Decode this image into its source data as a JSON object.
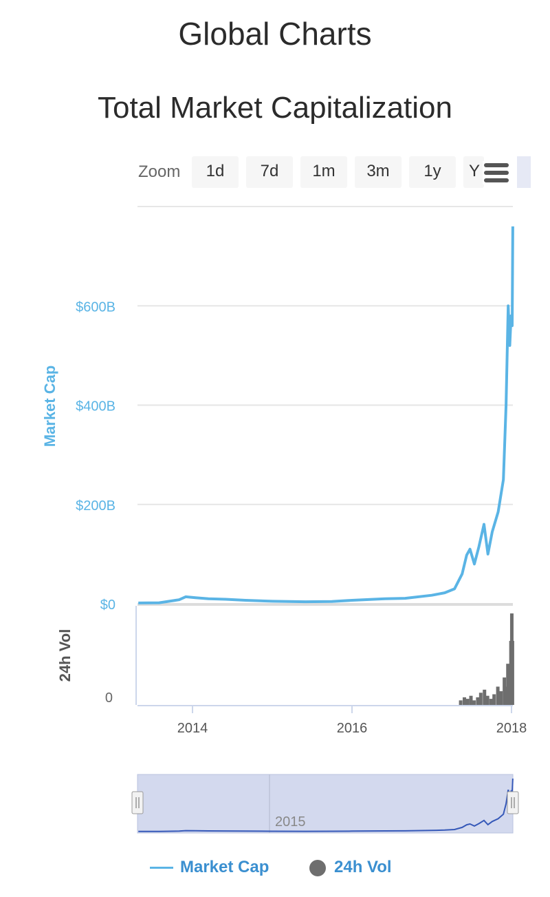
{
  "page_title": "Global Charts",
  "chart_title": "Total Market Capitalization",
  "toolbar": {
    "zoom_label": "Zoom",
    "buttons": [
      "1d",
      "7d",
      "1m",
      "3m",
      "1y",
      "Y"
    ],
    "menu_icon": "hamburger-menu-icon"
  },
  "colors": {
    "market_cap": "#5ab4e5",
    "volume": "#6e6e6e",
    "navigator_fill": "#d3d9ee",
    "navigator_line": "#3558b8"
  },
  "chart_data": {
    "type": "line",
    "title": "Total Market Capitalization",
    "ylabel": "Market Cap",
    "ylim": [
      0,
      800
    ],
    "y_ticks": [
      "$0",
      "$200B",
      "$400B",
      "$600B"
    ],
    "y_tick_values": [
      0,
      200,
      400,
      600
    ],
    "x_ticks": [
      "2014",
      "2016",
      "2018"
    ],
    "grid": true,
    "series": [
      {
        "name": "Market Cap",
        "type": "line",
        "unit": "$B",
        "x": [
          "2013-04-28",
          "2013-08-01",
          "2013-11-01",
          "2013-12-01",
          "2014-01-15",
          "2014-03-15",
          "2014-06-01",
          "2014-09-01",
          "2015-01-01",
          "2015-06-01",
          "2015-10-01",
          "2016-01-01",
          "2016-06-01",
          "2016-09-01",
          "2017-01-01",
          "2017-03-01",
          "2017-04-15",
          "2017-05-20",
          "2017-06-10",
          "2017-06-25",
          "2017-07-15",
          "2017-08-05",
          "2017-08-28",
          "2017-09-15",
          "2017-10-05",
          "2017-11-01",
          "2017-11-25",
          "2017-12-07",
          "2017-12-17",
          "2017-12-24",
          "2017-12-30",
          "2018-01-04",
          "2018-01-07"
        ],
        "y": [
          1.5,
          2,
          8,
          14,
          12,
          10,
          9,
          7,
          5,
          4,
          4.5,
          7,
          10,
          11,
          17,
          22,
          30,
          60,
          98,
          110,
          80,
          115,
          160,
          100,
          145,
          185,
          250,
          400,
          600,
          520,
          580,
          560,
          760
        ]
      },
      {
        "name": "24h Vol",
        "type": "column",
        "unit": "$B",
        "ylabel": "24h Vol",
        "y_ticks": [
          "0"
        ],
        "ylim": [
          0,
          65
        ],
        "x": [
          "2017-05-15",
          "2017-06-01",
          "2017-06-15",
          "2017-07-01",
          "2017-07-15",
          "2017-08-01",
          "2017-08-15",
          "2017-09-01",
          "2017-09-15",
          "2017-10-01",
          "2017-10-15",
          "2017-11-01",
          "2017-11-15",
          "2017-12-01",
          "2017-12-10",
          "2017-12-17",
          "2017-12-24",
          "2017-12-31",
          "2018-01-04",
          "2018-01-07"
        ],
        "y": [
          3,
          5,
          4,
          6,
          3,
          5,
          8,
          10,
          6,
          4,
          7,
          12,
          9,
          18,
          12,
          27,
          18,
          42,
          60,
          42
        ]
      }
    ],
    "navigator": {
      "label": "2015"
    },
    "legend": {
      "position": "bottom",
      "entries": [
        "Market Cap",
        "24h Vol"
      ]
    }
  }
}
